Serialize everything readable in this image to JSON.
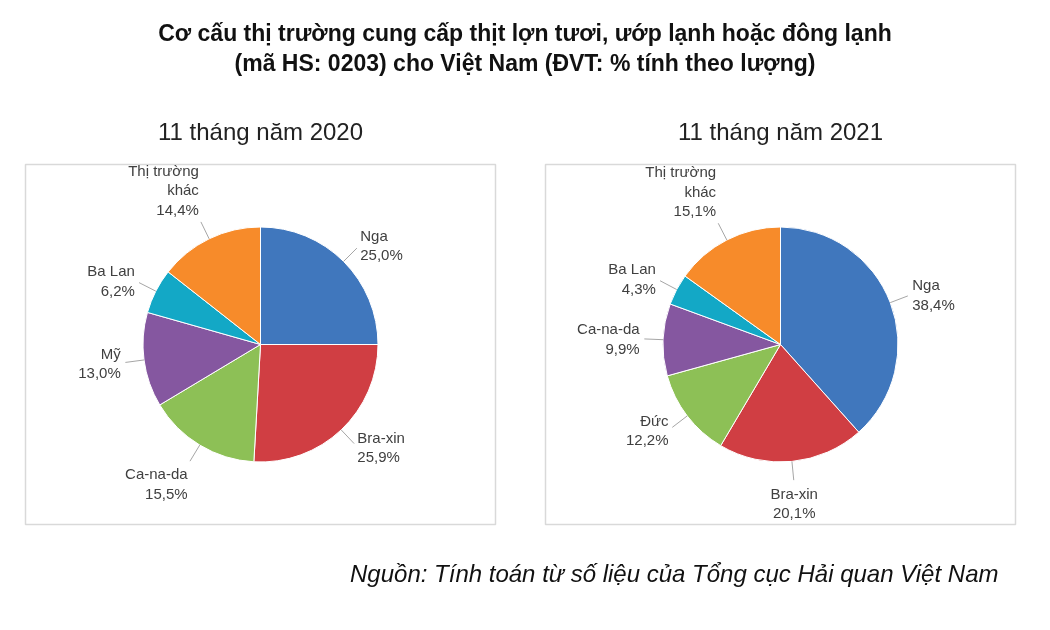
{
  "chart_data": [
    {
      "type": "pie",
      "title": "Cơ cấu thị trường cung cấp thịt lợn tươi, ướp lạnh hoặc đông lạnh (mã HS: 0203) cho Việt Nam (ĐVT: % tính theo lượng)",
      "subtitle": "11 tháng năm 2020",
      "categories": [
        "Nga",
        "Bra-xin",
        "Ca-na-da",
        "Mỹ",
        "Ba Lan",
        "Thị trường khác"
      ],
      "values": [
        25.0,
        25.9,
        15.5,
        13.0,
        6.2,
        14.4
      ],
      "colors": [
        "#4077bd",
        "#d03e43",
        "#8dc056",
        "#8557a0",
        "#13a8c6",
        "#f78b2a"
      ],
      "value_labels": [
        "25,0%",
        "25,9%",
        "15,5%",
        "13,0%",
        "6,2%",
        "14,4%"
      ]
    },
    {
      "type": "pie",
      "subtitle": "11 tháng năm 2021",
      "categories": [
        "Nga",
        "Bra-xin",
        "Đức",
        "Ca-na-da",
        "Ba Lan",
        "Thị trường khác"
      ],
      "values": [
        38.4,
        20.1,
        12.2,
        9.9,
        4.3,
        15.1
      ],
      "colors": [
        "#4077bd",
        "#d03e43",
        "#8dc056",
        "#8557a0",
        "#13a8c6",
        "#f78b2a"
      ],
      "value_labels": [
        "38,4%",
        "20,1%",
        "12,2%",
        "9,9%",
        "4,3%",
        "15,1%"
      ],
      "annotations": [
        "Nguồn: Tính toán từ số liệu của Tổng cục Hải quan Việt Nam"
      ]
    }
  ]
}
